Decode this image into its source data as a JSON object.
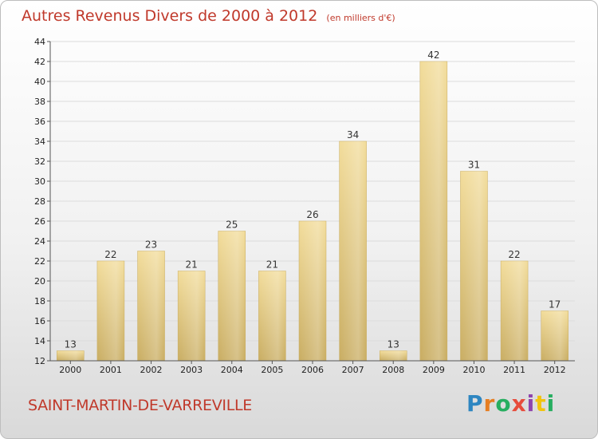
{
  "title": "Autres Revenus Divers de 2000 à 2012",
  "unit_note": "(en milliers d'€)",
  "commune": "SAINT-MARTIN-DE-VARREVILLE",
  "logo": {
    "letters": [
      "P",
      "r",
      "o",
      "x",
      "i",
      "t",
      "i"
    ],
    "colors": [
      "#2e86c1",
      "#e67e22",
      "#27ae60",
      "#e74c3c",
      "#8e44ad",
      "#f1c40f",
      "#27ae60"
    ]
  },
  "colors": {
    "bar": "#e6cc85",
    "bar_edge": "#c9ad62",
    "text_accent": "#c0392b"
  },
  "chart_data": {
    "type": "bar",
    "categories": [
      "2000",
      "2001",
      "2002",
      "2003",
      "2004",
      "2005",
      "2006",
      "2007",
      "2008",
      "2009",
      "2010",
      "2011",
      "2012"
    ],
    "values": [
      13,
      22,
      23,
      21,
      25,
      21,
      26,
      34,
      13,
      42,
      31,
      22,
      17
    ],
    "ylim": [
      12,
      44
    ],
    "yticks": [
      12,
      14,
      16,
      18,
      20,
      22,
      24,
      26,
      28,
      30,
      32,
      34,
      36,
      38,
      40,
      42,
      44
    ],
    "grid": true,
    "legend": "none"
  }
}
